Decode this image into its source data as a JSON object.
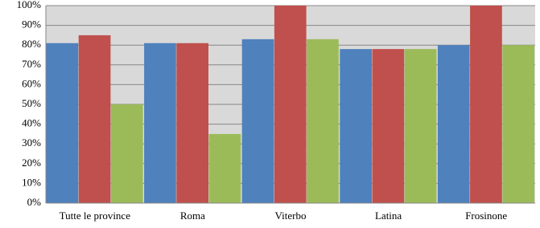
{
  "chart_data": {
    "type": "bar",
    "categories": [
      "Tutte le province",
      "Roma",
      "Viterbo",
      "Latina",
      "Frosinone"
    ],
    "series": [
      {
        "color": "#4f81bd",
        "values": [
          81,
          81,
          83,
          78,
          80
        ]
      },
      {
        "color": "#c0504d",
        "values": [
          85,
          81,
          100,
          78,
          100
        ]
      },
      {
        "color": "#9bbb59",
        "values": [
          50,
          35,
          83,
          78,
          80
        ]
      }
    ],
    "ylim": [
      0,
      100
    ],
    "yticks": [
      {
        "value": 0,
        "label": "0%"
      },
      {
        "value": 10,
        "label": "10%"
      },
      {
        "value": 20,
        "label": "20%"
      },
      {
        "value": 30,
        "label": "30%"
      },
      {
        "value": 40,
        "label": "40%"
      },
      {
        "value": 50,
        "label": "50%"
      },
      {
        "value": 60,
        "label": "60%"
      },
      {
        "value": 70,
        "label": "70%"
      },
      {
        "value": 80,
        "label": "80%"
      },
      {
        "value": 90,
        "label": "90%"
      },
      {
        "value": 100,
        "label": "100%"
      }
    ],
    "grid": true
  }
}
